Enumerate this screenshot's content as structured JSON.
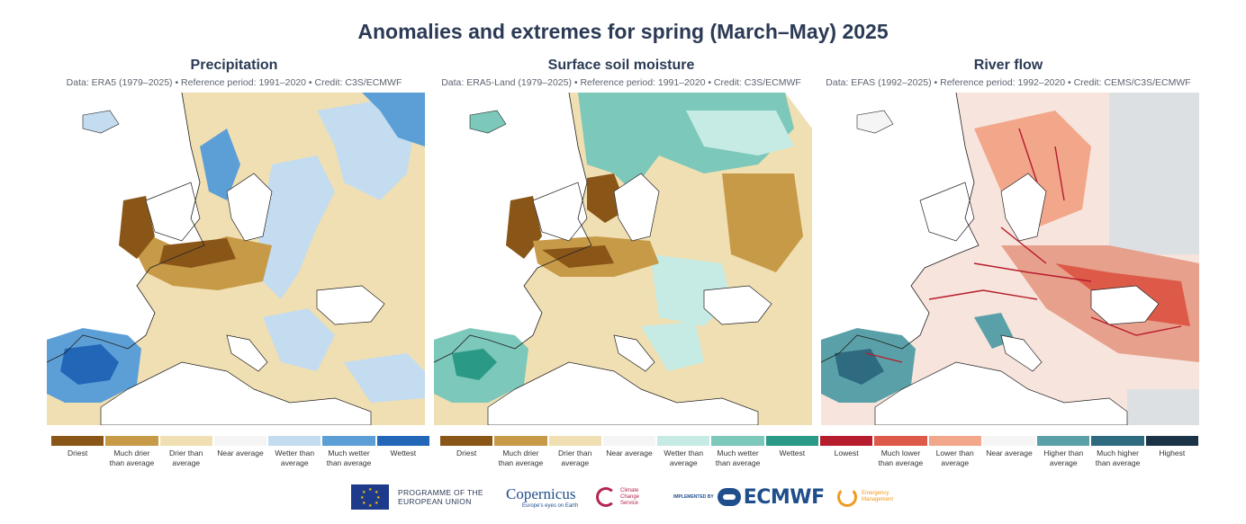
{
  "title": "Anomalies and extremes for spring (March–May) 2025",
  "panels": [
    {
      "title": "Precipitation",
      "subtitle": "Data: ERA5 (1979–2025) • Reference period: 1991–2020 • Credit: C3S/ECMWF",
      "legend": [
        {
          "label": "Driest",
          "color": "#8a5618"
        },
        {
          "label": "Much drier than average",
          "color": "#c79a48"
        },
        {
          "label": "Drier than average",
          "color": "#f0dfb2"
        },
        {
          "label": "Near average",
          "color": "#f5f5f5"
        },
        {
          "label": "Wetter than average",
          "color": "#c3dcf0"
        },
        {
          "label": "Much wetter than average",
          "color": "#5c9fd6"
        },
        {
          "label": "Wettest",
          "color": "#2266b8"
        }
      ]
    },
    {
      "title": "Surface soil moisture",
      "subtitle": "Data: ERA5-Land (1979–2025) • Reference period: 1991–2020 • Credit: C3S/ECMWF",
      "legend": [
        {
          "label": "Driest",
          "color": "#8a5618"
        },
        {
          "label": "Much drier than average",
          "color": "#c79a48"
        },
        {
          "label": "Drier than average",
          "color": "#f0dfb2"
        },
        {
          "label": "Near average",
          "color": "#f5f5f5"
        },
        {
          "label": "Wetter than average",
          "color": "#c5ebe4"
        },
        {
          "label": "Much wetter than average",
          "color": "#7cc8ba"
        },
        {
          "label": "Wettest",
          "color": "#2a9985"
        }
      ]
    },
    {
      "title": "River flow",
      "subtitle": "Data: EFAS (1992–2025) • Reference period: 1992–2020 • Credit: CEMS/C3S/ECMWF",
      "legend": [
        {
          "label": "Lowest",
          "color": "#b71c2c"
        },
        {
          "label": "Much lower than average",
          "color": "#de5a48"
        },
        {
          "label": "Lower than average",
          "color": "#f2a68a"
        },
        {
          "label": "Near average",
          "color": "#f5f5f5"
        },
        {
          "label": "Higher than average",
          "color": "#5aa0a8"
        },
        {
          "label": "Much higher than average",
          "color": "#2e6a80"
        },
        {
          "label": "Highest",
          "color": "#1a3346"
        }
      ]
    }
  ],
  "logos": {
    "eu": "PROGRAMME OF THE EUROPEAN UNION",
    "copernicus": "opernicus",
    "copernicus_sub": "Europe's eyes on Earth",
    "c3s": "Climate Change Service",
    "implemented_by": "IMPLEMENTED BY",
    "ecmwf": "ECMWF",
    "emergency": "Emergency Management"
  }
}
